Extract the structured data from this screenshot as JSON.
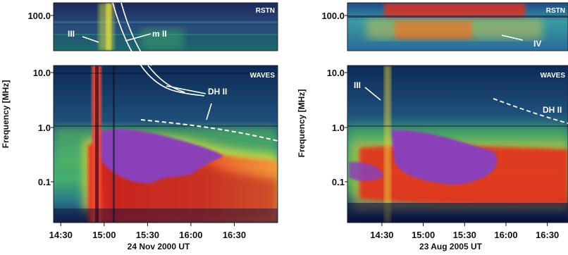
{
  "chart_data": [
    {
      "type": "heatmap",
      "title": "",
      "xlabel": "24 Nov 2000 UT",
      "ylabel": "Frequency [MHz]",
      "x_ticks": [
        "14:30",
        "15:00",
        "15:30",
        "16:00",
        "16:30"
      ],
      "y_ticks": [
        "100.0",
        "10.0",
        "1.0",
        "0.1"
      ],
      "y_scale": "log",
      "x_range": [
        "14:25",
        "17:00"
      ],
      "y_range_mhz": [
        0.025,
        180
      ],
      "instrument_labels": [
        "RSTN",
        "WAVES"
      ],
      "annotations": [
        "III",
        "m II",
        "DH II"
      ],
      "colormap": [
        "#0a0a3a",
        "#1e3f8a",
        "#2f7fbf",
        "#3fb0b0",
        "#4fc46a",
        "#9ccf3a",
        "#e8e23a",
        "#f2a22a",
        "#e62e1e",
        "#b0101a",
        "#8a3fb0"
      ]
    },
    {
      "type": "heatmap",
      "title": "",
      "xlabel": "23 Aug 2005 UT",
      "ylabel": "Frequency [MHz]",
      "x_ticks": [
        "14:30",
        "15:00",
        "15:30",
        "16:00",
        "16:30"
      ],
      "y_ticks": [
        "100.0",
        "10.0",
        "1.0",
        "0.1"
      ],
      "y_scale": "log",
      "x_range": [
        "14:05",
        "16:45"
      ],
      "y_range_mhz": [
        0.025,
        180
      ],
      "instrument_labels": [
        "RSTN",
        "WAVES"
      ],
      "annotations": [
        "III",
        "IV",
        "DH II"
      ],
      "colormap": [
        "#0a0a3a",
        "#1e3f8a",
        "#2f7fbf",
        "#3fb0b0",
        "#4fc46a",
        "#9ccf3a",
        "#e8e23a",
        "#f2a22a",
        "#e62e1e",
        "#b0101a",
        "#8a3fb0"
      ]
    }
  ]
}
